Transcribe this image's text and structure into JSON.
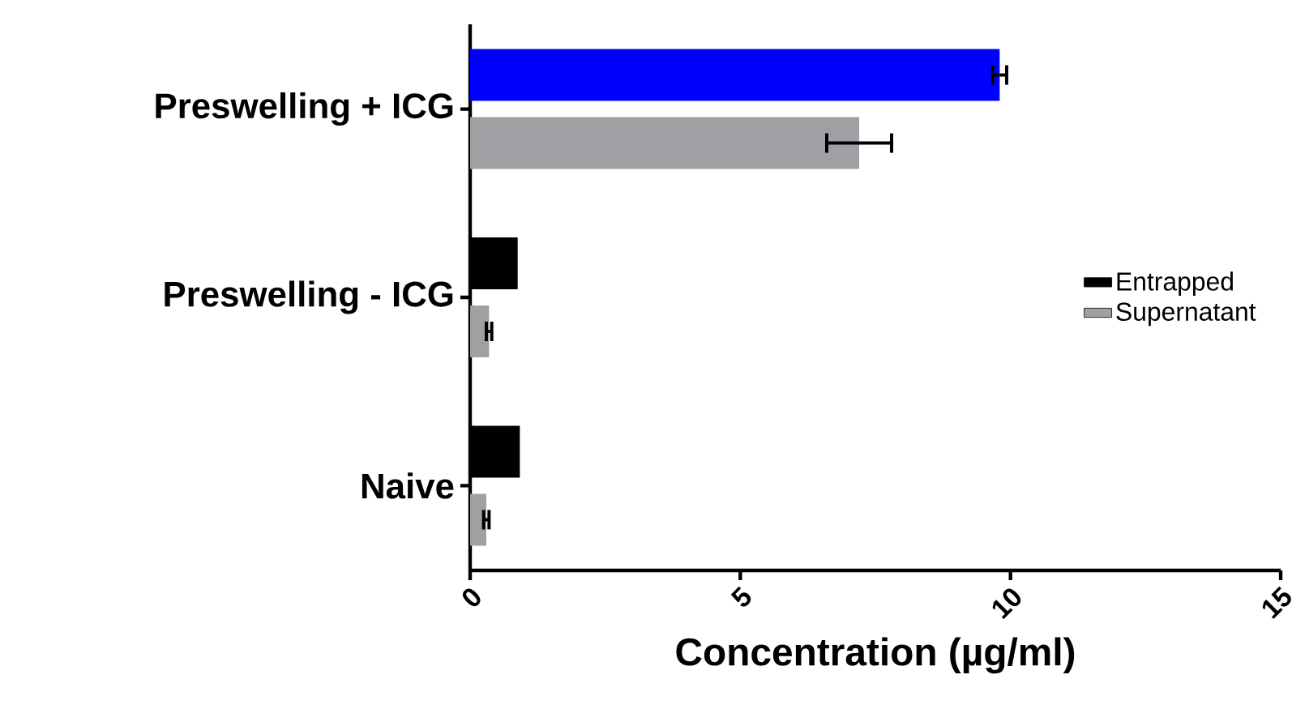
{
  "chart_data": {
    "type": "bar",
    "orientation": "horizontal",
    "xlabel": "Concentration (µg/ml)",
    "categories": [
      "Preswelling + ICG",
      "Preswelling - ICG",
      "Naive"
    ],
    "series": [
      {
        "name": "Entrapped",
        "color": "#000000",
        "colors": [
          "#0000ff",
          "#000000",
          "#000000"
        ],
        "values": [
          9.8,
          0.88,
          0.92
        ],
        "errors": [
          0.13,
          null,
          null
        ]
      },
      {
        "name": "Supernatant",
        "color": "#a0a0a4",
        "values": [
          7.2,
          0.35,
          0.3
        ],
        "errors": [
          0.6,
          0.05,
          0.05
        ]
      }
    ],
    "xlim": [
      0,
      15
    ],
    "xticks": [
      0,
      5,
      10,
      15
    ],
    "legend": "right",
    "grid": false
  }
}
